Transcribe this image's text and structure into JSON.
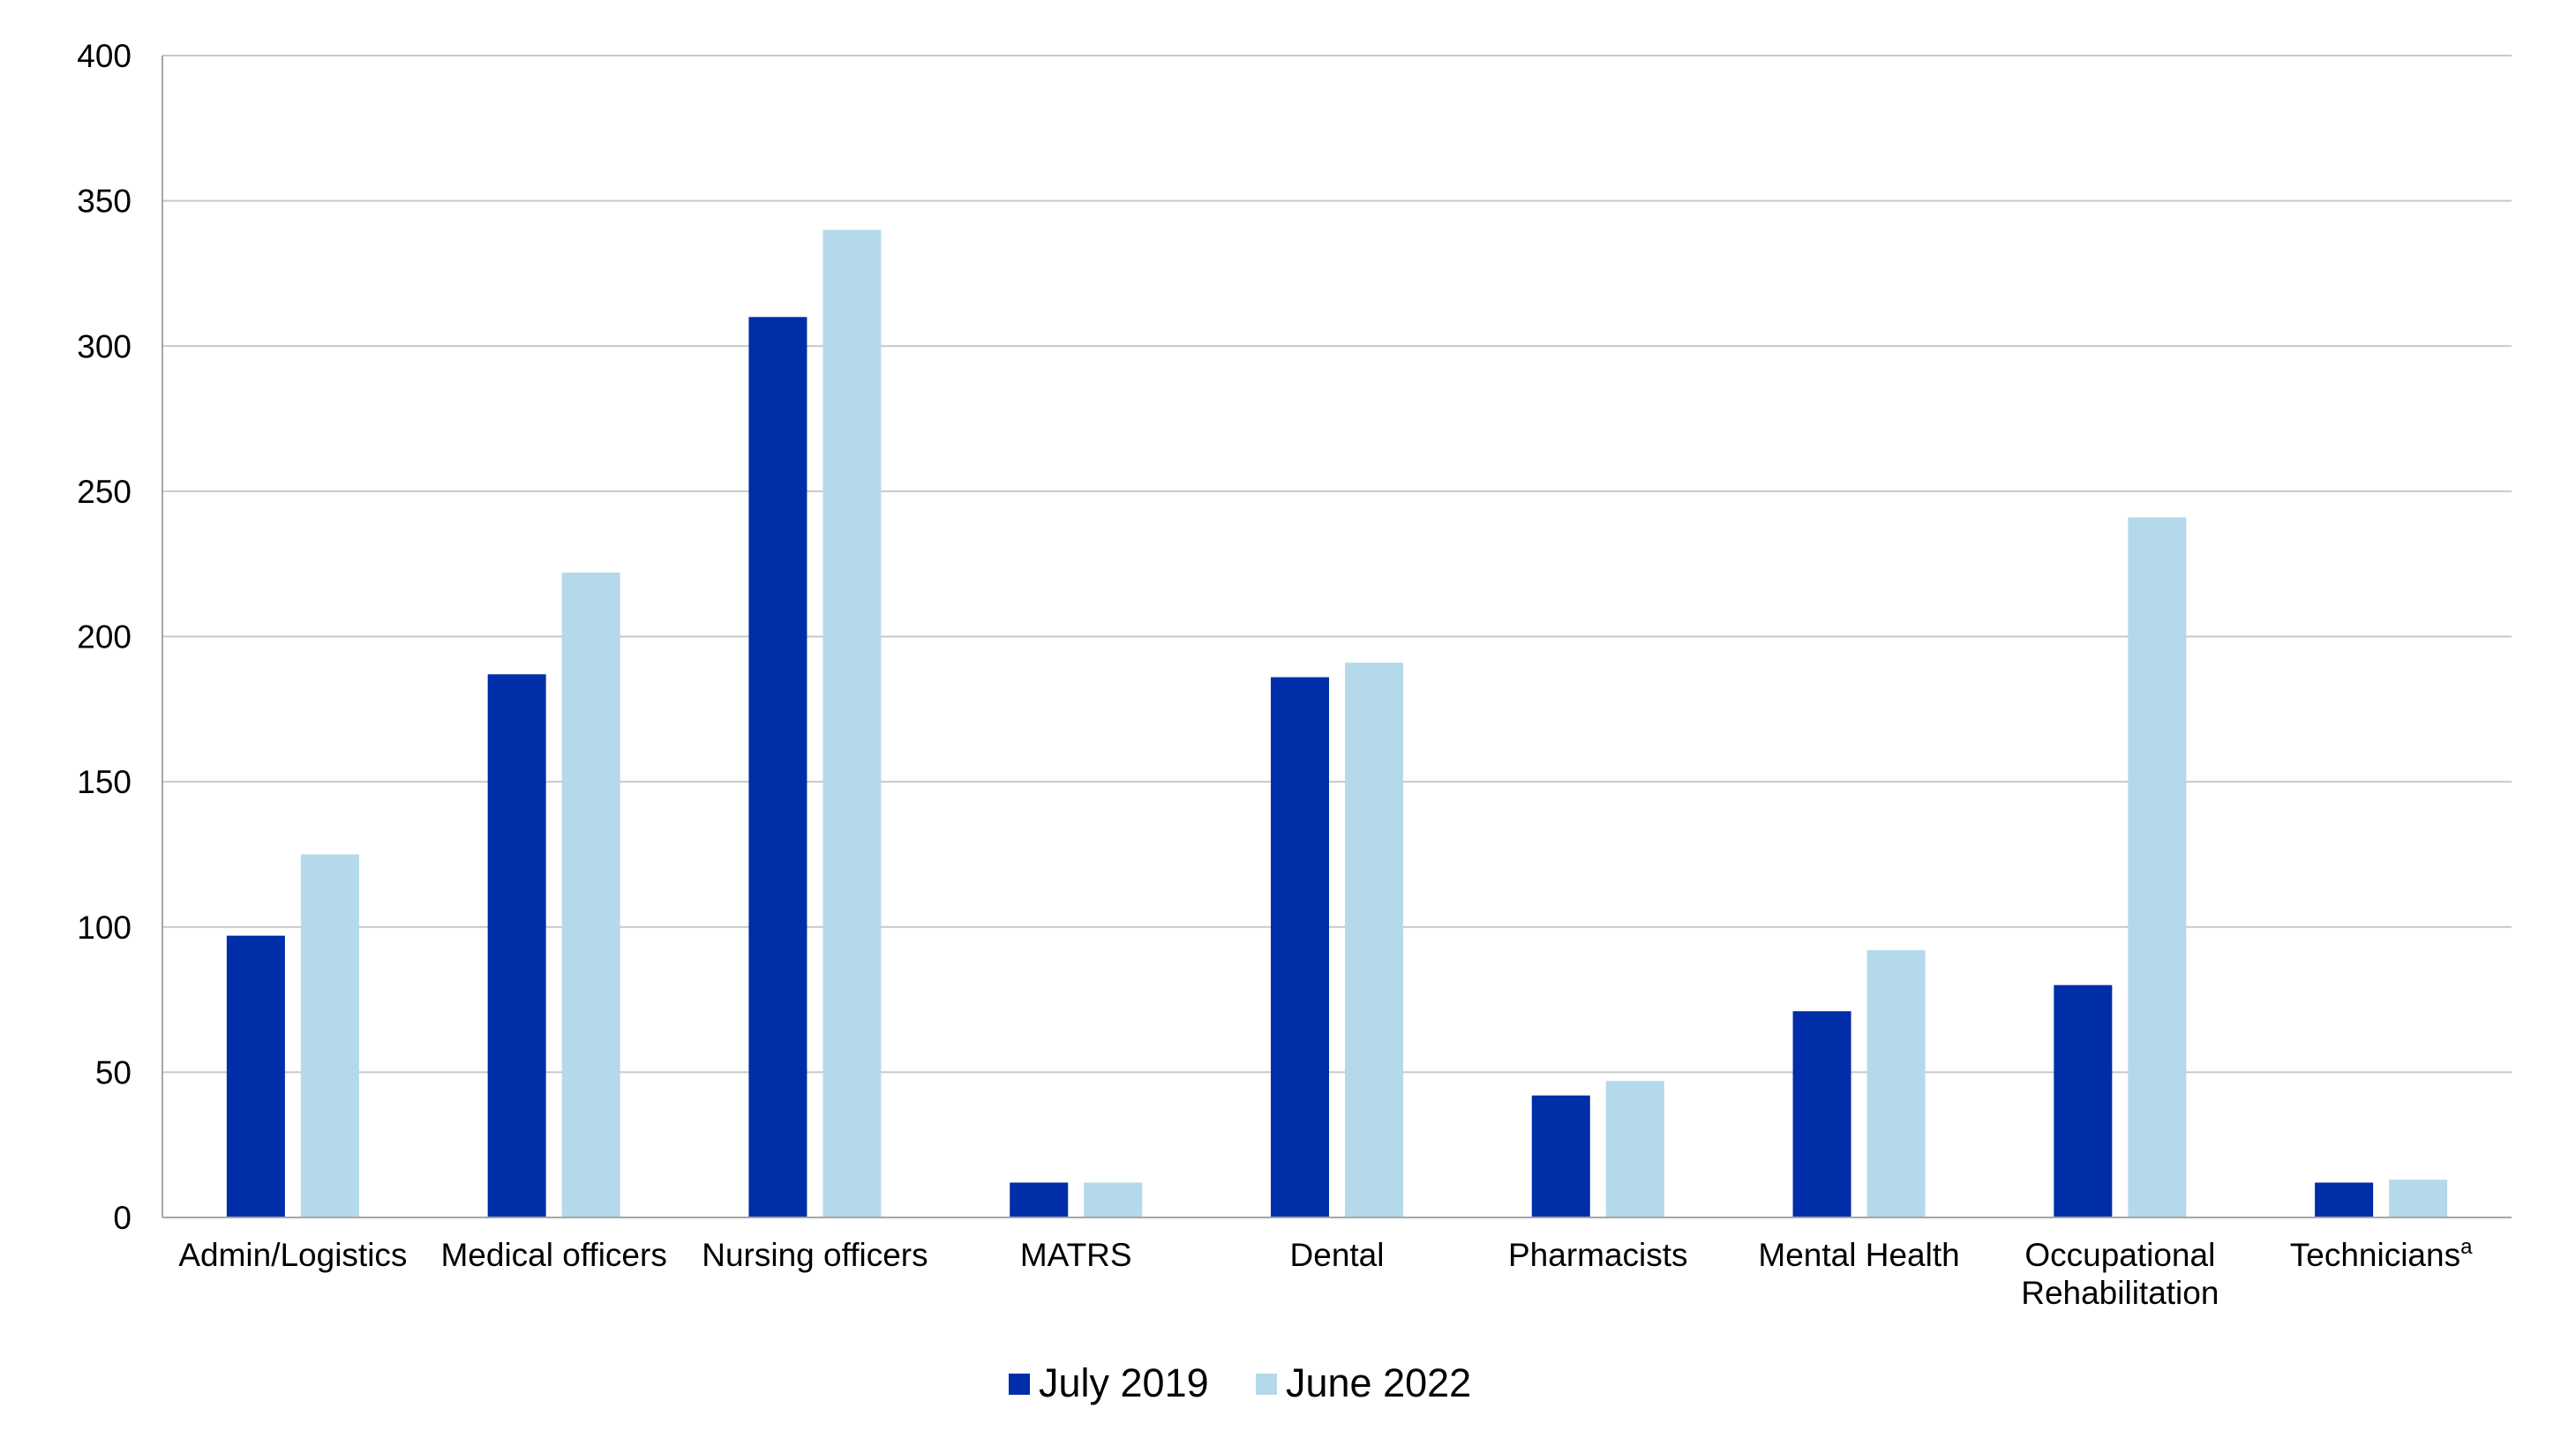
{
  "chart_data": {
    "type": "bar",
    "title": "",
    "xlabel": "",
    "ylabel": "",
    "ylim": [
      0,
      400
    ],
    "yticks": [
      0,
      50,
      100,
      150,
      200,
      250,
      300,
      350,
      400
    ],
    "grid": true,
    "legend_position": "bottom-center",
    "categories": [
      {
        "lines": [
          "Admin/Logistics"
        ],
        "sup": ""
      },
      {
        "lines": [
          "Medical officers"
        ],
        "sup": ""
      },
      {
        "lines": [
          "Nursing officers"
        ],
        "sup": ""
      },
      {
        "lines": [
          "MATRS"
        ],
        "sup": ""
      },
      {
        "lines": [
          "Dental"
        ],
        "sup": ""
      },
      {
        "lines": [
          "Pharmacists"
        ],
        "sup": ""
      },
      {
        "lines": [
          "Mental Health"
        ],
        "sup": ""
      },
      {
        "lines": [
          "Occupational",
          "Rehabilitation"
        ],
        "sup": ""
      },
      {
        "lines": [
          "Technicians"
        ],
        "sup": "a"
      }
    ],
    "series": [
      {
        "name": "July 2019",
        "color": "#002ea8",
        "values": [
          97,
          187,
          310,
          12,
          186,
          42,
          71,
          80,
          12
        ]
      },
      {
        "name": "June 2022",
        "color": "#b4d9eb",
        "values": [
          125,
          222,
          340,
          12,
          191,
          47,
          92,
          241,
          13
        ]
      }
    ],
    "colors": {
      "grid": "#c8c8c8",
      "axis": "#a6a6a6"
    }
  }
}
